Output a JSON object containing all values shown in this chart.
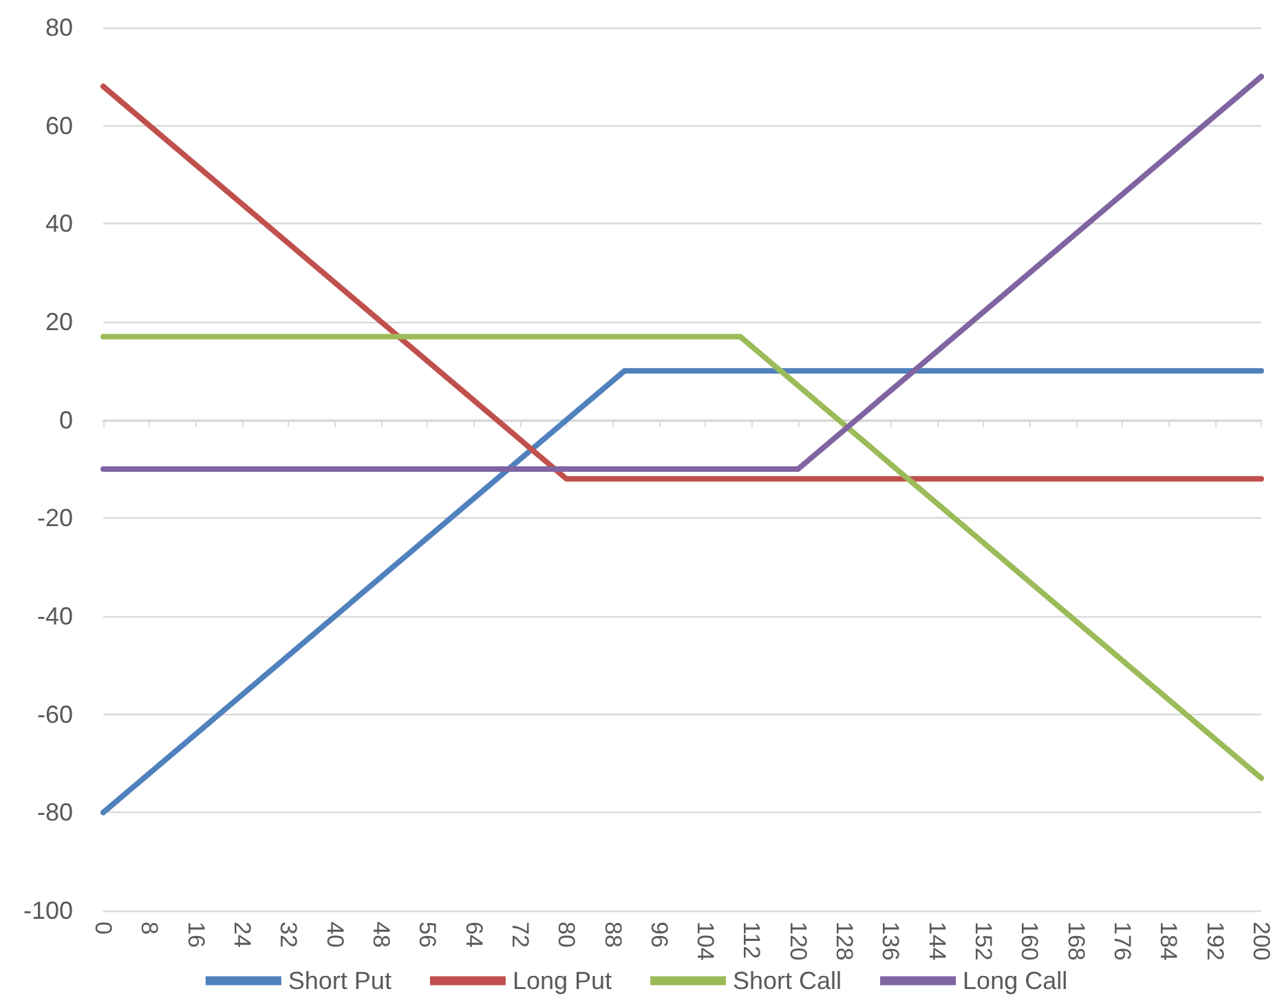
{
  "chart_data": {
    "type": "line",
    "xlim": [
      0,
      200
    ],
    "xticks": [
      0,
      8,
      16,
      24,
      32,
      40,
      48,
      56,
      64,
      72,
      80,
      88,
      96,
      104,
      112,
      120,
      128,
      136,
      144,
      152,
      160,
      168,
      176,
      184,
      192,
      200
    ],
    "ylim": [
      -100,
      80
    ],
    "yticks": [
      -100,
      -80,
      -60,
      -40,
      -20,
      0,
      20,
      40,
      60,
      80
    ],
    "grid": "y",
    "legend": "bottom",
    "marker": "none",
    "line_style": "solid",
    "series": [
      {
        "name": "Short Put",
        "color": "#4f81bd",
        "x": [
          0,
          90,
          200
        ],
        "values": [
          -80,
          10,
          10
        ]
      },
      {
        "name": "Long Put",
        "color": "#c0504d",
        "x": [
          0,
          80,
          200
        ],
        "values": [
          68,
          -12,
          -12
        ]
      },
      {
        "name": "Short Call",
        "color": "#9bbb59",
        "x": [
          0,
          110,
          200
        ],
        "values": [
          17,
          17,
          -73
        ]
      },
      {
        "name": "Long Call",
        "color": "#8064a2",
        "x": [
          0,
          120,
          200
        ],
        "values": [
          -10,
          -10,
          70
        ]
      }
    ]
  }
}
